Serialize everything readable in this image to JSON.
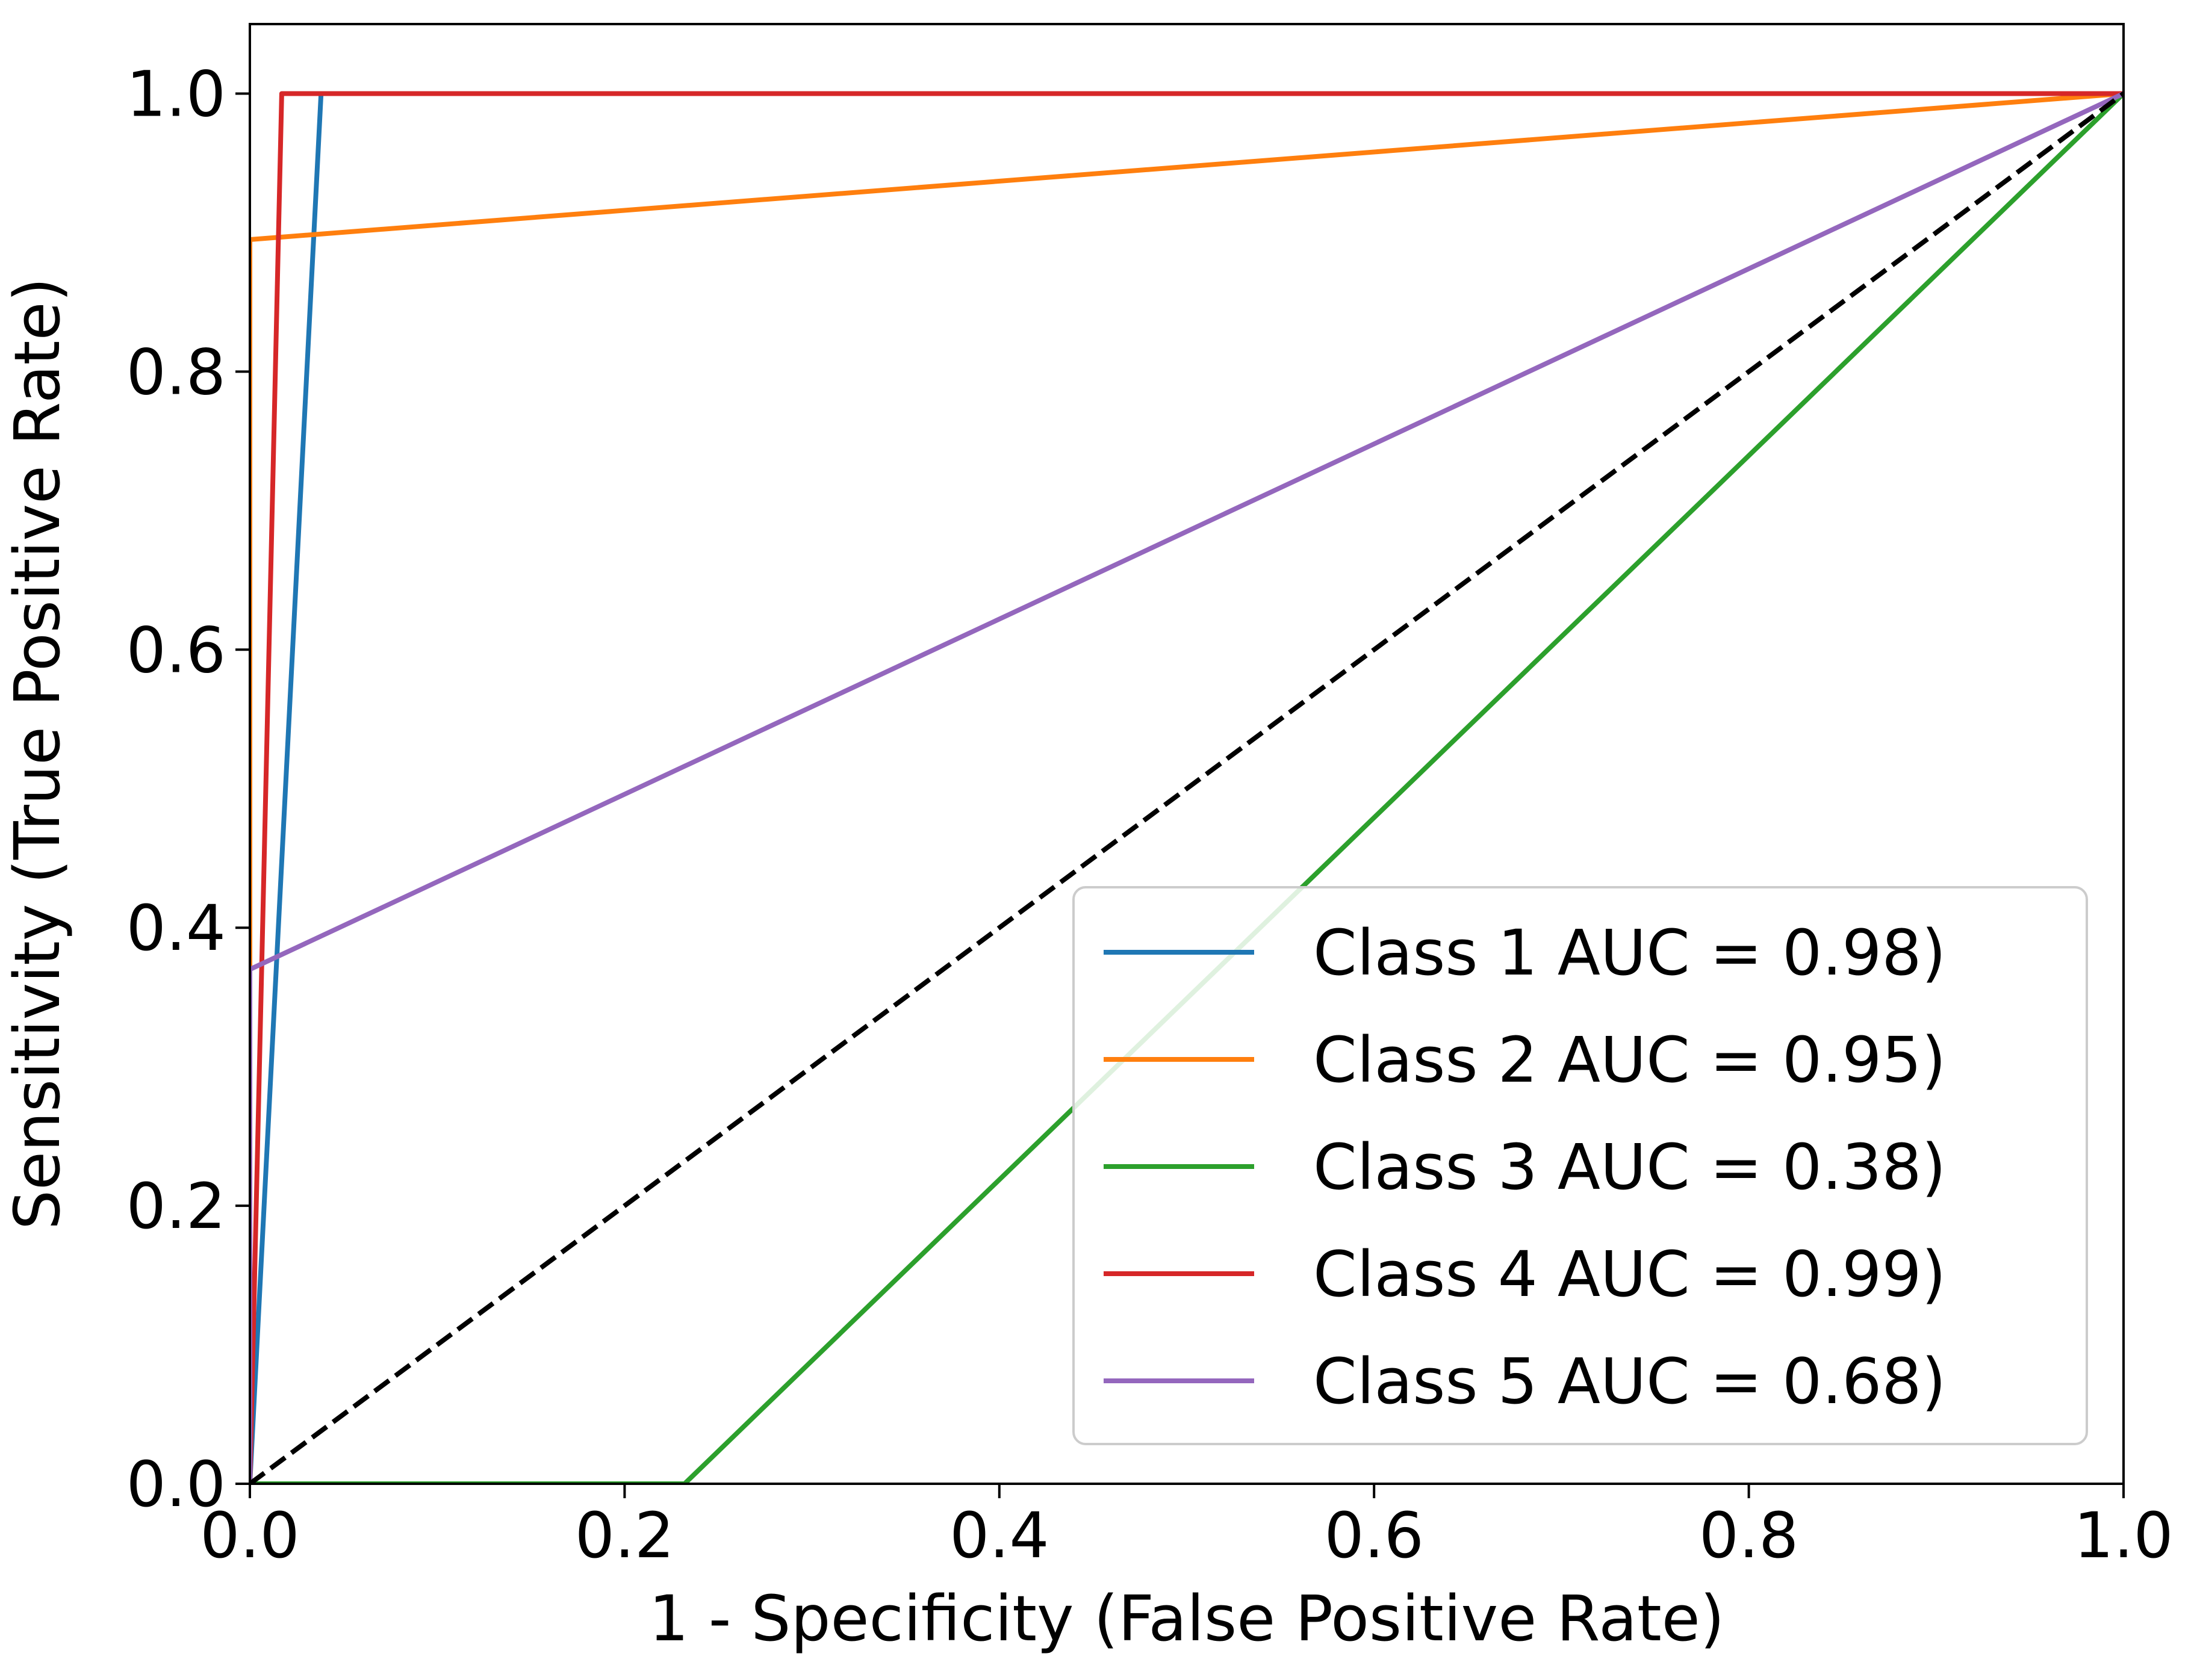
{
  "chart_data": {
    "type": "line",
    "title": "",
    "xlabel": "1 - Specificity (False Positive Rate)",
    "ylabel": "Sensitivity (True Positive Rate)",
    "xlim": [
      0.0,
      1.0
    ],
    "ylim": [
      0.0,
      1.05
    ],
    "xticks": [
      0.0,
      0.2,
      0.4,
      0.6,
      0.8,
      1.0
    ],
    "yticks": [
      0.0,
      0.2,
      0.4,
      0.6,
      0.8,
      1.0
    ],
    "xtick_labels": [
      "0.0",
      "0.2",
      "0.4",
      "0.6",
      "0.8",
      "1.0"
    ],
    "ytick_labels": [
      "0.0",
      "0.2",
      "0.4",
      "0.6",
      "0.8",
      "1.0"
    ],
    "grid": false,
    "legend_position": "lower-right",
    "series": [
      {
        "name": "Class 1 AUC = 0.98)",
        "color": "#1f77b4",
        "x": [
          0.0,
          0.038,
          1.0
        ],
        "y": [
          0.0,
          1.0,
          1.0
        ]
      },
      {
        "name": "Class 2 AUC = 0.95)",
        "color": "#ff7f0e",
        "x": [
          0.0,
          0.0,
          1.0
        ],
        "y": [
          0.0,
          0.895,
          1.0
        ]
      },
      {
        "name": "Class 3 AUC = 0.38)",
        "color": "#2ca02c",
        "x": [
          0.0,
          0.232,
          1.0
        ],
        "y": [
          0.0,
          0.0,
          1.0
        ]
      },
      {
        "name": "Class 4 AUC = 0.99)",
        "color": "#d62728",
        "x": [
          0.0,
          0.017,
          1.0
        ],
        "y": [
          0.0,
          1.0,
          1.0
        ]
      },
      {
        "name": "Class 5 AUC = 0.68)",
        "color": "#9467bd",
        "x": [
          0.0,
          0.0,
          1.0
        ],
        "y": [
          0.0,
          0.37,
          1.0
        ]
      }
    ],
    "reference_line": {
      "style": "dashed",
      "color": "#000000",
      "x": [
        0.0,
        1.0
      ],
      "y": [
        0.0,
        1.0
      ]
    }
  }
}
